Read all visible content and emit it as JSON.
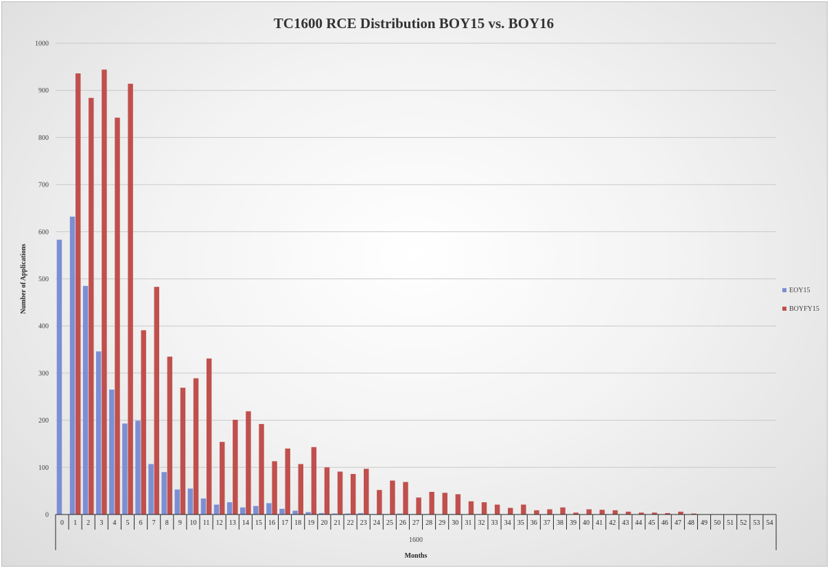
{
  "chart_data": {
    "type": "bar",
    "title": "TC1600 RCE Distribution BOY15 vs. BOY16",
    "xlabel": "Months",
    "x_group_label": "1600",
    "ylabel": "Number of Applications",
    "ylim": [
      0,
      1000
    ],
    "yticks": [
      0,
      100,
      200,
      300,
      400,
      500,
      600,
      700,
      800,
      900,
      1000
    ],
    "grid": true,
    "legend_position": "right",
    "categories": [
      "0",
      "1",
      "2",
      "3",
      "4",
      "5",
      "6",
      "7",
      "8",
      "9",
      "10",
      "11",
      "12",
      "13",
      "14",
      "15",
      "16",
      "17",
      "18",
      "19",
      "20",
      "21",
      "22",
      "23",
      "24",
      "25",
      "26",
      "27",
      "28",
      "29",
      "30",
      "31",
      "32",
      "33",
      "34",
      "35",
      "36",
      "37",
      "38",
      "39",
      "40",
      "41",
      "42",
      "43",
      "44",
      "45",
      "46",
      "47",
      "48",
      "49",
      "50",
      "51",
      "52",
      "53",
      "54"
    ],
    "series": [
      {
        "name": "EOY15",
        "color": "#7b8fd4",
        "values": [
          583,
          632,
          485,
          346,
          265,
          193,
          199,
          107,
          90,
          53,
          55,
          34,
          21,
          26,
          15,
          18,
          24,
          12,
          8,
          5,
          3,
          2,
          2,
          3,
          1,
          1,
          2,
          1,
          1,
          0,
          1,
          0,
          1,
          0,
          0,
          0,
          0,
          0,
          0,
          0,
          0,
          0,
          0,
          0,
          0,
          0,
          0,
          0,
          0,
          0,
          0,
          0,
          0,
          0,
          0
        ]
      },
      {
        "name": "BOYFY15",
        "color": "#c0504d",
        "values": [
          0,
          936,
          884,
          944,
          842,
          914,
          391,
          483,
          335,
          269,
          289,
          331,
          154,
          201,
          219,
          192,
          113,
          140,
          107,
          143,
          100,
          91,
          86,
          97,
          52,
          72,
          69,
          36,
          48,
          46,
          43,
          28,
          26,
          21,
          14,
          21,
          9,
          11,
          15,
          4,
          11,
          10,
          9,
          6,
          4,
          4,
          3,
          6,
          2,
          0,
          0,
          0,
          0,
          0,
          0
        ]
      }
    ]
  }
}
